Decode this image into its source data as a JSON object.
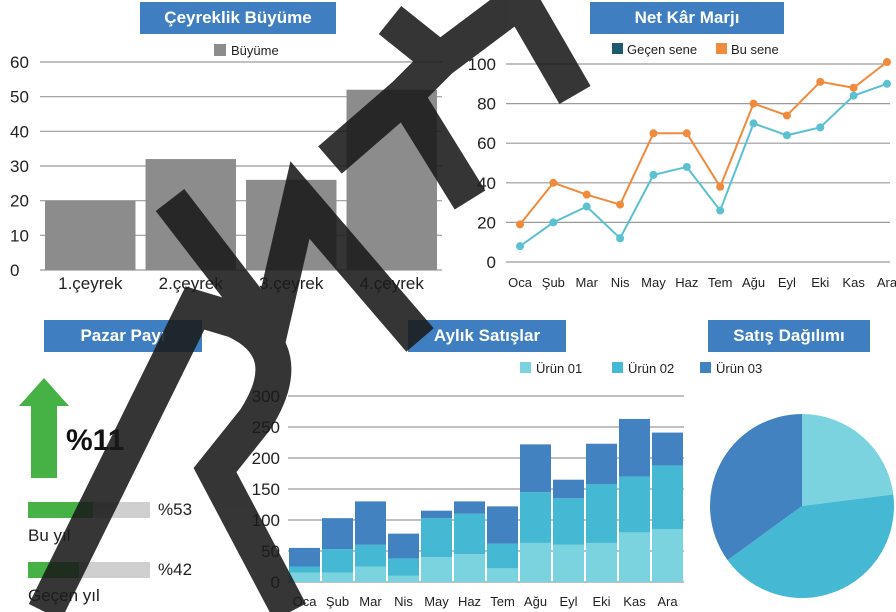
{
  "chart_data": [
    {
      "type": "bar",
      "title": "Çeyreklik Büyüme",
      "categories": [
        "1.çeyrek",
        "2.çeyrek",
        "3.çeyrek",
        "4.çeyrek"
      ],
      "series": [
        {
          "name": "Büyüme",
          "values": [
            20,
            32,
            26,
            52
          ]
        }
      ],
      "ylim": [
        0,
        60
      ],
      "yticks": [
        0,
        10,
        20,
        30,
        40,
        50,
        60
      ],
      "colors": {
        "bar": "#8c8c8c"
      }
    },
    {
      "type": "line",
      "title": "Net Kâr Marjı",
      "categories": [
        "Oca",
        "Şub",
        "Mar",
        "Nis",
        "May",
        "Haz",
        "Tem",
        "Ağu",
        "Eyl",
        "Eki",
        "Kas",
        "Ara"
      ],
      "series": [
        {
          "name": "Geçen sene",
          "values": [
            8,
            20,
            28,
            12,
            44,
            48,
            26,
            70,
            64,
            68,
            84,
            90
          ],
          "color": "#5bc0d0"
        },
        {
          "name": "Bu sene",
          "values": [
            19,
            40,
            34,
            29,
            65,
            65,
            38,
            80,
            74,
            91,
            88,
            101
          ],
          "color": "#f08a3c"
        }
      ],
      "legend_labels": [
        "Geçen sene",
        "Bu sene"
      ],
      "legend_colors": [
        "#1d5a6e",
        "#f08a3c"
      ],
      "ylim": [
        0,
        100
      ],
      "yticks": [
        0,
        20,
        40,
        60,
        80,
        100
      ]
    },
    {
      "type": "bar",
      "title": "Aylık Satışlar",
      "stacked": true,
      "categories": [
        "Oca",
        "Şub",
        "Mar",
        "Nis",
        "May",
        "Haz",
        "Tem",
        "Ağu",
        "Eyl",
        "Eki",
        "Kas",
        "Ara"
      ],
      "series": [
        {
          "name": "Ürün 01",
          "values": [
            15,
            15,
            25,
            10,
            40,
            45,
            22,
            63,
            60,
            63,
            80,
            85
          ],
          "color": "#7ad3de"
        },
        {
          "name": "Ürün 02",
          "values": [
            10,
            38,
            35,
            28,
            63,
            65,
            40,
            82,
            75,
            95,
            90,
            103
          ],
          "color": "#45b8d3"
        },
        {
          "name": "Ürün 03",
          "values": [
            30,
            50,
            70,
            40,
            12,
            20,
            60,
            77,
            30,
            65,
            93,
            53
          ],
          "color": "#4282c1"
        }
      ],
      "ylim": [
        0,
        300
      ],
      "yticks": [
        0,
        50,
        100,
        150,
        200,
        250,
        300
      ]
    },
    {
      "type": "pie",
      "title": "Satış Dağılımı",
      "series": [
        {
          "name": "Ürün 01",
          "value": 23,
          "color": "#7ad3de"
        },
        {
          "name": "Ürün 02",
          "value": 42,
          "color": "#45b8d3"
        },
        {
          "name": "Ürün 03",
          "value": 35,
          "color": "#4282c1"
        }
      ]
    }
  ],
  "market": {
    "title": "Pazar Payı",
    "growth": "%11",
    "this_year_label": "Bu yıl",
    "this_year_pct": "%53",
    "this_year_value": 0.53,
    "last_year_label": "Geçen yıl",
    "last_year_pct": "%42",
    "last_year_value": 0.42,
    "bar_color": "#46b144"
  },
  "watermark": {
    "text": "RNE",
    "color": "#1a1a1a"
  }
}
